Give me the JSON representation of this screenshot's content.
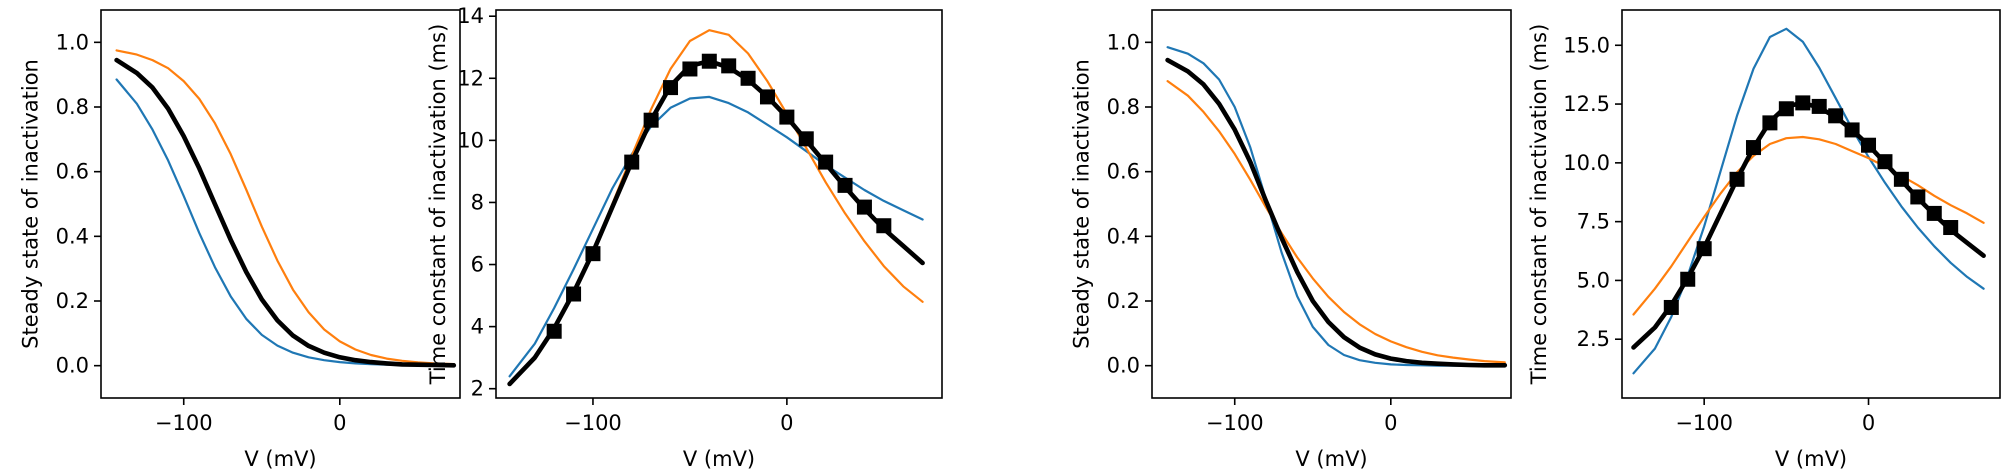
{
  "chart_data": [
    {
      "type": "line",
      "xlabel": "V (mV)",
      "ylabel": "Steady state of inactivation",
      "xlim": [
        -153,
        77
      ],
      "ylim": [
        -0.1,
        1.1
      ],
      "xticks": [
        -100,
        0
      ],
      "xtick_labels": [
        "−100",
        "0"
      ],
      "yticks": [
        0.0,
        0.2,
        0.4,
        0.6,
        0.8,
        1.0
      ],
      "ytick_labels": [
        "0.0",
        "0.2",
        "0.4",
        "0.6",
        "0.8",
        "1.0"
      ],
      "series": [
        {
          "color": "#1f77b4",
          "width": 2.2,
          "x": [
            -143,
            -130,
            -120,
            -110,
            -100,
            -90,
            -80,
            -70,
            -60,
            -50,
            -40,
            -30,
            -20,
            -10,
            0,
            10,
            20,
            30,
            40,
            50,
            60,
            73
          ],
          "y": [
            0.885,
            0.81,
            0.73,
            0.635,
            0.525,
            0.41,
            0.305,
            0.215,
            0.145,
            0.095,
            0.062,
            0.04,
            0.026,
            0.017,
            0.011,
            0.007,
            0.005,
            0.003,
            0.002,
            0.001,
            0.001,
            0.0
          ]
        },
        {
          "color": "#ff7f0e",
          "width": 2.2,
          "x": [
            -143,
            -130,
            -120,
            -110,
            -100,
            -90,
            -80,
            -70,
            -60,
            -50,
            -40,
            -30,
            -20,
            -10,
            0,
            10,
            20,
            30,
            40,
            50,
            60,
            73
          ],
          "y": [
            0.975,
            0.962,
            0.945,
            0.92,
            0.88,
            0.825,
            0.75,
            0.655,
            0.545,
            0.43,
            0.325,
            0.235,
            0.165,
            0.112,
            0.075,
            0.05,
            0.033,
            0.022,
            0.015,
            0.01,
            0.007,
            0.005
          ]
        },
        {
          "color": "#000000",
          "width": 4.6,
          "x": [
            -143,
            -130,
            -120,
            -110,
            -100,
            -90,
            -80,
            -70,
            -60,
            -50,
            -40,
            -30,
            -20,
            -10,
            0,
            10,
            20,
            30,
            40,
            50,
            60,
            73
          ],
          "y": [
            0.945,
            0.905,
            0.86,
            0.795,
            0.71,
            0.61,
            0.5,
            0.39,
            0.29,
            0.205,
            0.14,
            0.093,
            0.061,
            0.04,
            0.026,
            0.017,
            0.011,
            0.007,
            0.004,
            0.003,
            0.002,
            0.001
          ]
        }
      ],
      "markers": null
    },
    {
      "type": "line",
      "xlabel": "V (mV)",
      "ylabel": "Time constant of inactivation (ms)",
      "xlim": [
        -150,
        80
      ],
      "ylim": [
        1.7,
        14.2
      ],
      "xticks": [
        -100,
        0
      ],
      "xtick_labels": [
        "−100",
        "0"
      ],
      "yticks": [
        2,
        4,
        6,
        8,
        10,
        12,
        14
      ],
      "ytick_labels": [
        "2",
        "4",
        "6",
        "8",
        "10",
        "12",
        "14"
      ],
      "series": [
        {
          "color": "#1f77b4",
          "width": 2.2,
          "x": [
            -143,
            -130,
            -120,
            -110,
            -100,
            -90,
            -80,
            -70,
            -60,
            -50,
            -40,
            -30,
            -20,
            -10,
            0,
            10,
            20,
            30,
            40,
            50,
            60,
            70
          ],
          "y": [
            2.4,
            3.45,
            4.6,
            5.85,
            7.15,
            8.45,
            9.55,
            10.45,
            11.05,
            11.35,
            11.4,
            11.2,
            10.9,
            10.5,
            10.1,
            9.65,
            9.2,
            8.8,
            8.4,
            8.05,
            7.75,
            7.45
          ]
        },
        {
          "color": "#ff7f0e",
          "width": 2.2,
          "x": [
            -143,
            -130,
            -120,
            -110,
            -100,
            -90,
            -80,
            -70,
            -60,
            -50,
            -40,
            -30,
            -20,
            -10,
            0,
            10,
            20,
            30,
            40,
            50,
            60,
            70
          ],
          "y": [
            2.15,
            2.95,
            3.9,
            5.1,
            6.45,
            7.95,
            9.5,
            11.0,
            12.3,
            13.2,
            13.55,
            13.4,
            12.8,
            11.9,
            10.85,
            9.75,
            8.65,
            7.65,
            6.75,
            5.95,
            5.3,
            4.8
          ]
        },
        {
          "color": "#000000",
          "width": 4.6,
          "x": [
            -143,
            -130,
            -120,
            -110,
            -100,
            -90,
            -80,
            -70,
            -60,
            -50,
            -40,
            -30,
            -20,
            -10,
            0,
            10,
            20,
            30,
            40,
            50,
            60,
            70
          ],
          "y": [
            2.15,
            3.0,
            3.95,
            5.1,
            6.4,
            7.85,
            9.3,
            10.65,
            11.75,
            12.4,
            12.55,
            12.35,
            11.95,
            11.4,
            10.75,
            10.0,
            9.25,
            8.5,
            7.8,
            7.15,
            6.6,
            6.05
          ]
        }
      ],
      "markers": {
        "color": "#000000",
        "x": [
          -120,
          -110,
          -100,
          -80,
          -70,
          -60,
          -50,
          -40,
          -30,
          -20,
          -10,
          0,
          10,
          20,
          30,
          40,
          50
        ],
        "y": [
          3.85,
          5.05,
          6.35,
          9.3,
          10.65,
          11.7,
          12.3,
          12.55,
          12.4,
          12.0,
          11.4,
          10.75,
          10.05,
          9.3,
          8.55,
          7.85,
          7.25
        ]
      }
    },
    {
      "type": "line",
      "xlabel": "V (mV)",
      "ylabel": "Steady state of inactivation",
      "xlim": [
        -153,
        77
      ],
      "ylim": [
        -0.1,
        1.1
      ],
      "xticks": [
        -100,
        0
      ],
      "xtick_labels": [
        "−100",
        "0"
      ],
      "yticks": [
        0.0,
        0.2,
        0.4,
        0.6,
        0.8,
        1.0
      ],
      "ytick_labels": [
        "0.0",
        "0.2",
        "0.4",
        "0.6",
        "0.8",
        "1.0"
      ],
      "series": [
        {
          "color": "#1f77b4",
          "width": 2.2,
          "x": [
            -143,
            -130,
            -120,
            -110,
            -100,
            -90,
            -80,
            -70,
            -60,
            -50,
            -40,
            -30,
            -20,
            -10,
            0,
            10,
            20,
            30,
            40,
            50,
            60,
            73
          ],
          "y": [
            0.985,
            0.965,
            0.935,
            0.885,
            0.8,
            0.675,
            0.515,
            0.35,
            0.215,
            0.12,
            0.064,
            0.033,
            0.017,
            0.009,
            0.004,
            0.002,
            0.001,
            0.0,
            0.0,
            0.0,
            0.0,
            0.0
          ]
        },
        {
          "color": "#ff7f0e",
          "width": 2.2,
          "x": [
            -143,
            -130,
            -120,
            -110,
            -100,
            -90,
            -80,
            -70,
            -60,
            -50,
            -40,
            -30,
            -20,
            -10,
            0,
            10,
            20,
            30,
            40,
            50,
            60,
            73
          ],
          "y": [
            0.88,
            0.835,
            0.785,
            0.725,
            0.655,
            0.575,
            0.49,
            0.41,
            0.335,
            0.27,
            0.213,
            0.166,
            0.128,
            0.098,
            0.075,
            0.057,
            0.043,
            0.032,
            0.025,
            0.019,
            0.014,
            0.01
          ]
        },
        {
          "color": "#000000",
          "width": 4.6,
          "x": [
            -143,
            -130,
            -120,
            -110,
            -100,
            -90,
            -80,
            -70,
            -60,
            -50,
            -40,
            -30,
            -20,
            -10,
            0,
            10,
            20,
            30,
            40,
            50,
            60,
            73
          ],
          "y": [
            0.945,
            0.91,
            0.87,
            0.81,
            0.73,
            0.63,
            0.51,
            0.395,
            0.29,
            0.2,
            0.135,
            0.088,
            0.056,
            0.035,
            0.022,
            0.014,
            0.009,
            0.006,
            0.004,
            0.002,
            0.001,
            0.001
          ]
        }
      ],
      "markers": null
    },
    {
      "type": "line",
      "xlabel": "V (mV)",
      "ylabel": "Time constant of inactivation (ms)",
      "xlim": [
        -150,
        80
      ],
      "ylim": [
        0.0,
        16.5
      ],
      "xticks": [
        -100,
        0
      ],
      "xtick_labels": [
        "−100",
        "0"
      ],
      "yticks": [
        2.5,
        5.0,
        7.5,
        10.0,
        12.5,
        15.0
      ],
      "ytick_labels": [
        "2.5",
        "5.0",
        "7.5",
        "10.0",
        "12.5",
        "15.0"
      ],
      "series": [
        {
          "color": "#1f77b4",
          "width": 2.2,
          "x": [
            -143,
            -130,
            -120,
            -110,
            -100,
            -90,
            -80,
            -70,
            -60,
            -50,
            -40,
            -30,
            -20,
            -10,
            0,
            10,
            20,
            30,
            40,
            50,
            60,
            70
          ],
          "y": [
            1.05,
            2.1,
            3.45,
            5.2,
            7.3,
            9.65,
            12.0,
            14.0,
            15.35,
            15.7,
            15.15,
            14.05,
            12.75,
            11.45,
            10.25,
            9.15,
            8.15,
            7.25,
            6.45,
            5.75,
            5.15,
            4.65
          ]
        },
        {
          "color": "#ff7f0e",
          "width": 2.2,
          "x": [
            -143,
            -130,
            -120,
            -110,
            -100,
            -90,
            -80,
            -70,
            -60,
            -50,
            -40,
            -30,
            -20,
            -10,
            0,
            10,
            20,
            30,
            40,
            50,
            60,
            70
          ],
          "y": [
            3.55,
            4.65,
            5.6,
            6.65,
            7.7,
            8.7,
            9.6,
            10.3,
            10.8,
            11.05,
            11.1,
            11.0,
            10.8,
            10.5,
            10.2,
            9.85,
            9.45,
            9.05,
            8.6,
            8.2,
            7.85,
            7.45
          ]
        },
        {
          "color": "#000000",
          "width": 4.6,
          "x": [
            -143,
            -130,
            -120,
            -110,
            -100,
            -90,
            -80,
            -70,
            -60,
            -50,
            -40,
            -30,
            -20,
            -10,
            0,
            10,
            20,
            30,
            40,
            50,
            60,
            70
          ],
          "y": [
            2.15,
            3.0,
            3.95,
            5.1,
            6.4,
            7.85,
            9.3,
            10.65,
            11.75,
            12.4,
            12.55,
            12.35,
            11.95,
            11.4,
            10.75,
            10.0,
            9.25,
            8.5,
            7.8,
            7.15,
            6.6,
            6.05
          ]
        }
      ],
      "markers": {
        "color": "#000000",
        "x": [
          -120,
          -110,
          -100,
          -80,
          -70,
          -60,
          -50,
          -40,
          -30,
          -20,
          -10,
          0,
          10,
          20,
          30,
          40,
          50
        ],
        "y": [
          3.85,
          5.05,
          6.35,
          9.3,
          10.65,
          11.7,
          12.3,
          12.55,
          12.4,
          12.0,
          11.4,
          10.75,
          10.05,
          9.3,
          8.55,
          7.85,
          7.25
        ]
      }
    }
  ]
}
